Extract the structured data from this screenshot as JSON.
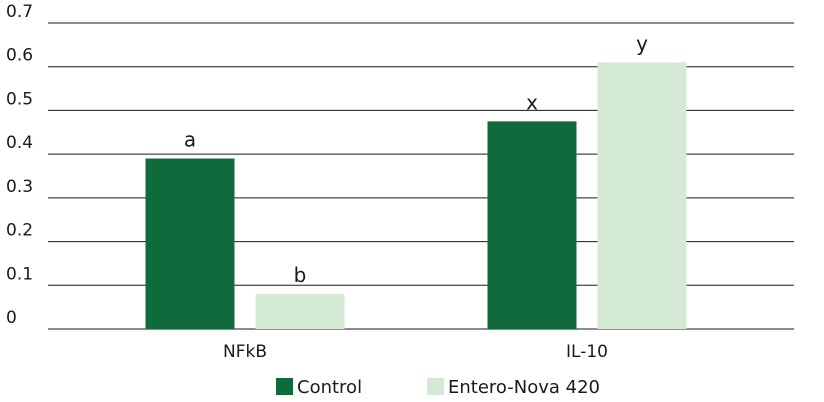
{
  "chart_data": {
    "type": "bar",
    "categories": [
      "NFkB",
      "IL-10"
    ],
    "series": [
      {
        "name": "Control",
        "values": [
          0.39,
          0.475
        ],
        "color": "#0f6b3c",
        "labels": [
          "a",
          "x"
        ]
      },
      {
        "name": "Entero-Nova 420",
        "values": [
          0.08,
          0.61
        ],
        "color": "#d4ead4",
        "labels": [
          "b",
          "y"
        ]
      }
    ],
    "ylim": [
      0,
      0.7
    ],
    "yticks": [
      "0",
      "0.1",
      "0.2",
      "0.3",
      "0.4",
      "0.5",
      "0.6",
      "0.7"
    ],
    "grid": true,
    "legend_position": "bottom"
  }
}
